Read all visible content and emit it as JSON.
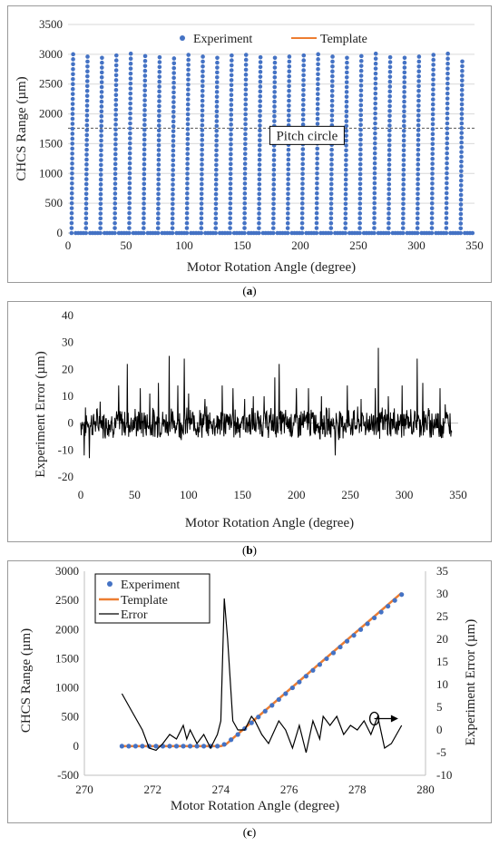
{
  "figures": {
    "a": {
      "caption_letter": "a"
    },
    "b": {
      "caption_letter": "b"
    },
    "c": {
      "caption_letter": "c"
    }
  },
  "chart_data": [
    {
      "panel": "a",
      "type": "scatter",
      "xlabel": "Motor Rotation Angle (degree)",
      "ylabel": "CHCS Range (µm)",
      "xlim": [
        0,
        350
      ],
      "ylim": [
        0,
        3500
      ],
      "xticks": [
        0,
        50,
        100,
        150,
        200,
        250,
        300,
        350
      ],
      "yticks": [
        0,
        500,
        1000,
        1500,
        2000,
        2500,
        3000,
        3500
      ],
      "grid": true,
      "legend": "top",
      "annotation": {
        "text": "Pitch circle",
        "y": 1760
      },
      "series": [
        {
          "name": "Experiment",
          "color": "#4472C4",
          "kind": "points",
          "tooth_pitch_deg": 12.41,
          "first_tooth_deg": 3,
          "tooth_count": 28,
          "tooth_heights": [
            3000,
            2960,
            2940,
            2980,
            3010,
            2970,
            2950,
            2930,
            2990,
            2960,
            2940,
            2980,
            2990,
            2950,
            2940,
            2960,
            2980,
            3000,
            2960,
            2940,
            2970,
            3010,
            2950,
            2940,
            2960,
            2990,
            3010,
            2880
          ]
        },
        {
          "name": "Template",
          "color": "#ED7D31",
          "kind": "line"
        }
      ]
    },
    {
      "panel": "b",
      "type": "line",
      "xlabel": "Motor Rotation Angle (degree)",
      "ylabel": "Experiment  Error (µm)",
      "xlim": [
        0,
        350
      ],
      "ylim": [
        -20,
        40
      ],
      "xticks": [
        0,
        50,
        100,
        150,
        200,
        250,
        300,
        350
      ],
      "yticks": [
        -20,
        -10,
        0,
        10,
        20,
        30,
        40
      ],
      "series": [
        {
          "name": "Error",
          "color": "#000000",
          "x_range": [
            0,
            344
          ],
          "spikes": [
            [
              3,
              -12
            ],
            [
              8,
              -13
            ],
            [
              18,
              8
            ],
            [
              35,
              14
            ],
            [
              43,
              22
            ],
            [
              55,
              13
            ],
            [
              64,
              11
            ],
            [
              72,
              15
            ],
            [
              82,
              25
            ],
            [
              90,
              14
            ],
            [
              96,
              24
            ],
            [
              100,
              11
            ],
            [
              115,
              9
            ],
            [
              131,
              14
            ],
            [
              141,
              13
            ],
            [
              152,
              9
            ],
            [
              160,
              10
            ],
            [
              170,
              10
            ],
            [
              180,
              17
            ],
            [
              184,
              22
            ],
            [
              200,
              13
            ],
            [
              211,
              13
            ],
            [
              223,
              10
            ],
            [
              236,
              -12
            ],
            [
              247,
              14
            ],
            [
              260,
              9
            ],
            [
              273,
              13
            ],
            [
              276,
              28
            ],
            [
              285,
              10
            ],
            [
              298,
              14
            ],
            [
              312,
              24
            ],
            [
              317,
              15
            ],
            [
              333,
              13
            ],
            [
              338,
              7
            ],
            [
              343,
              -5
            ]
          ]
        }
      ]
    },
    {
      "panel": "c",
      "type": "line",
      "xlabel": "Motor Rotation Angle (degree)",
      "ylabel": "CHCS Range (µm)",
      "y2label": "Experiment  Error (µm)",
      "xlim": [
        270,
        280
      ],
      "ylim": [
        -500,
        3000
      ],
      "y2lim": [
        -10,
        35
      ],
      "xticks": [
        270,
        272,
        274,
        276,
        278,
        280
      ],
      "yticks": [
        -500,
        0,
        500,
        1000,
        1500,
        2000,
        2500,
        3000
      ],
      "y2ticks": [
        -10,
        -5,
        0,
        5,
        10,
        15,
        20,
        25,
        30,
        35
      ],
      "legend": "top-left",
      "series": [
        {
          "name": "Experiment",
          "color": "#4472C4",
          "kind": "points",
          "axis": "left",
          "x": [
            271.1,
            271.3,
            271.5,
            271.7,
            271.9,
            272.1,
            272.3,
            272.5,
            272.7,
            272.9,
            273.1,
            273.3,
            273.5,
            273.7,
            273.9,
            274.1,
            274.3,
            274.5,
            274.7,
            274.9,
            275.1,
            275.3,
            275.5,
            275.7,
            275.9,
            276.1,
            276.3,
            276.5,
            276.7,
            276.9,
            277.1,
            277.3,
            277.5,
            277.7,
            277.9,
            278.1,
            278.3,
            278.5,
            278.7,
            278.9,
            279.1,
            279.3
          ],
          "y": [
            0,
            0,
            0,
            0,
            0,
            0,
            0,
            0,
            0,
            0,
            0,
            0,
            0,
            0,
            0,
            30,
            110,
            200,
            300,
            400,
            500,
            600,
            700,
            800,
            900,
            1000,
            1100,
            1200,
            1300,
            1400,
            1500,
            1600,
            1700,
            1800,
            1900,
            2000,
            2100,
            2200,
            2300,
            2400,
            2500,
            2600
          ]
        },
        {
          "name": "Template",
          "color": "#ED7D31",
          "kind": "line",
          "axis": "left",
          "x": [
            271.1,
            274.0,
            274.15,
            279.3
          ],
          "y": [
            0,
            0,
            30,
            2630
          ]
        },
        {
          "name": "Error",
          "color": "#000000",
          "kind": "line",
          "axis": "right",
          "x": [
            271.1,
            271.4,
            271.7,
            271.9,
            272.1,
            272.3,
            272.5,
            272.7,
            272.9,
            273.0,
            273.1,
            273.3,
            273.5,
            273.7,
            273.9,
            274.0,
            274.1,
            274.2,
            274.35,
            274.5,
            274.7,
            274.9,
            275.0,
            275.2,
            275.4,
            275.7,
            275.9,
            276.1,
            276.3,
            276.5,
            276.7,
            276.9,
            277.0,
            277.2,
            277.4,
            277.6,
            277.8,
            278.0,
            278.2,
            278.4,
            278.6,
            278.8,
            279.0,
            279.3
          ],
          "y": [
            8,
            4,
            0,
            -4,
            -4.5,
            -3,
            -1,
            -2,
            1,
            -2,
            0,
            -3,
            -1,
            -4,
            -1,
            2,
            29,
            20,
            2,
            0,
            0,
            3,
            2,
            -1,
            -3,
            2,
            0,
            -4,
            1,
            -5,
            2,
            -2,
            3,
            1,
            3,
            -1,
            1,
            0,
            2,
            -1,
            3,
            -4,
            -3,
            1
          ]
        }
      ],
      "marker_arrow": {
        "x_from": 278.5,
        "x_to": 279.2,
        "y2": 2.5
      }
    }
  ]
}
